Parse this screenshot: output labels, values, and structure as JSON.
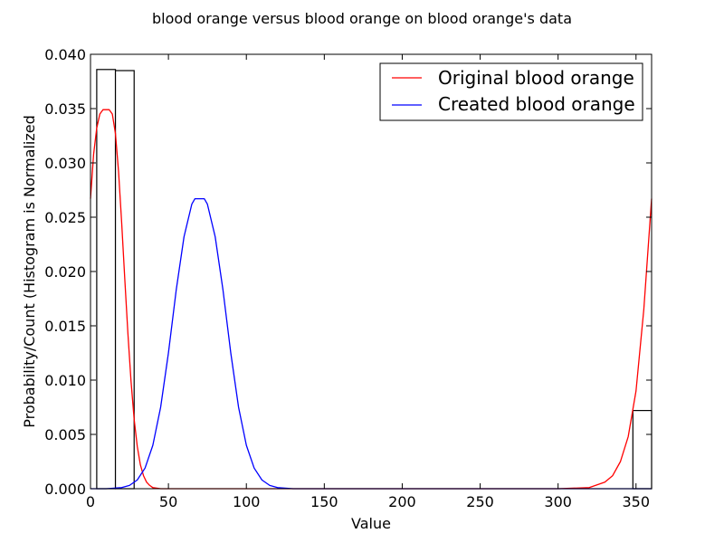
{
  "chart_data": {
    "type": "histogram+line",
    "title": "blood orange versus blood orange on blood orange's data",
    "xlabel": "Value",
    "ylabel": "Probability/Count (Histogram is Normalized",
    "xlim": [
      0,
      360
    ],
    "ylim": [
      0,
      0.04
    ],
    "x_ticks": [
      0,
      50,
      100,
      150,
      200,
      250,
      300,
      350
    ],
    "x_tick_labels": [
      "0",
      "50",
      "100",
      "150",
      "200",
      "250",
      "300",
      "350"
    ],
    "y_ticks": [
      0,
      0.005,
      0.01,
      0.015,
      0.02,
      0.025,
      0.03,
      0.035,
      0.04
    ],
    "y_tick_labels": [
      "0.000",
      "0.005",
      "0.010",
      "0.015",
      "0.020",
      "0.025",
      "0.030",
      "0.035",
      "0.040"
    ],
    "grid": false,
    "legend_position": "top-right",
    "histogram": {
      "bins": [
        {
          "x0": 4,
          "x1": 16,
          "value": 0.0386
        },
        {
          "x0": 16,
          "x1": 28,
          "value": 0.0385
        },
        {
          "x0": 348,
          "x1": 360,
          "value": 0.0072
        }
      ],
      "fill": "#ffffff",
      "edge": "#000000"
    },
    "series": [
      {
        "name": "Original blood orange",
        "color": "#ff0000",
        "x": [
          0,
          2,
          4,
          6,
          8,
          10,
          12,
          14,
          16,
          18,
          20,
          22,
          24,
          26,
          28,
          30,
          32,
          34,
          36,
          38,
          40,
          45,
          50,
          60,
          80,
          100,
          150,
          200,
          250,
          300,
          320,
          330,
          335,
          340,
          345,
          350,
          355,
          360
        ],
        "values": [
          0.0267,
          0.0308,
          0.0332,
          0.0345,
          0.0349,
          0.0349,
          0.0349,
          0.0345,
          0.0327,
          0.0292,
          0.0245,
          0.0193,
          0.0143,
          0.0099,
          0.0064,
          0.0039,
          0.0022,
          0.0012,
          0.0006,
          0.0003,
          0.0001,
          0.0,
          0.0,
          0.0,
          0.0,
          0.0,
          0.0,
          0.0,
          0.0,
          0.0,
          0.0001,
          0.0006,
          0.0012,
          0.0025,
          0.0048,
          0.009,
          0.0165,
          0.0267
        ]
      },
      {
        "name": "Created blood orange",
        "color": "#0000ff",
        "x": [
          0,
          10,
          20,
          25,
          30,
          35,
          40,
          45,
          50,
          55,
          60,
          65,
          67,
          70,
          73,
          75,
          80,
          85,
          90,
          95,
          100,
          105,
          110,
          115,
          120,
          130,
          140,
          150,
          200,
          250,
          300,
          360
        ],
        "values": [
          0.0,
          0.0,
          0.0001,
          0.0003,
          0.0008,
          0.0019,
          0.004,
          0.0075,
          0.0125,
          0.0183,
          0.0232,
          0.0262,
          0.0267,
          0.0267,
          0.0267,
          0.0262,
          0.0232,
          0.0183,
          0.0125,
          0.0075,
          0.004,
          0.0019,
          0.0008,
          0.0003,
          0.0001,
          0.0,
          0.0,
          0.0,
          0.0,
          0.0,
          0.0,
          0.0
        ]
      }
    ]
  }
}
